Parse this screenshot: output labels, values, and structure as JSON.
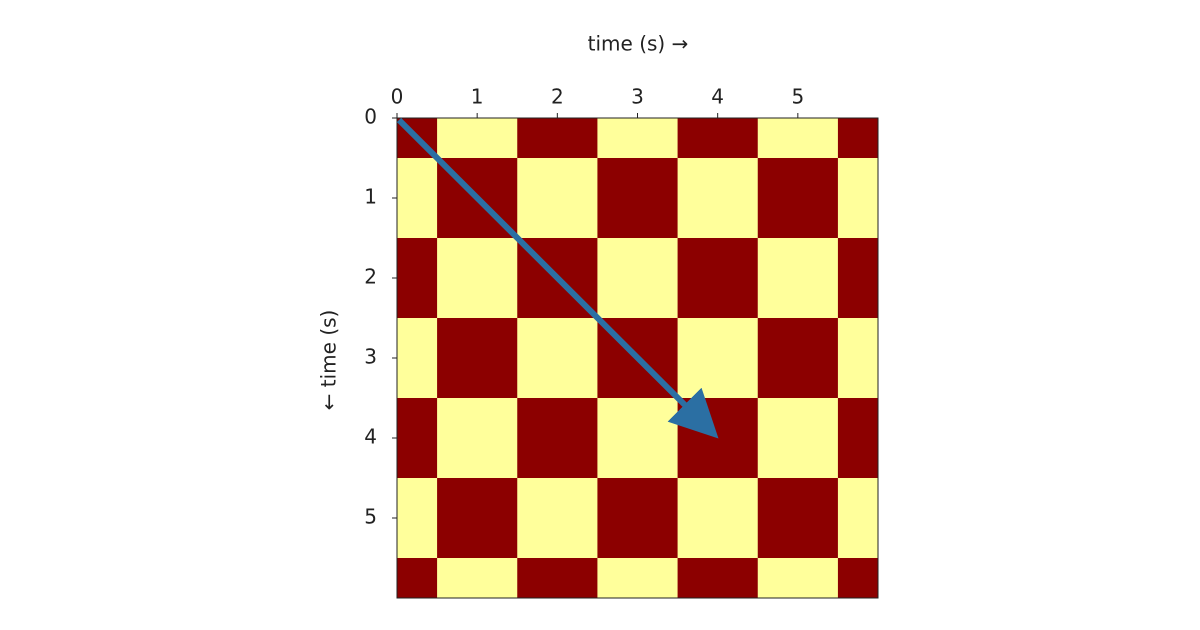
{
  "chart_data": {
    "type": "heatmap",
    "xlabel": "time (s) →",
    "ylabel": "← time (s)",
    "x_axis_position": "top",
    "colormap": "hot",
    "zlim": [
      0,
      1
    ],
    "xlim": [
      0,
      6
    ],
    "ylim": [
      6,
      0
    ],
    "xticks": [
      0,
      1,
      2,
      3,
      4,
      5
    ],
    "yticks": [
      0,
      1,
      2,
      3,
      4,
      5
    ],
    "x": [
      0.25,
      0.75,
      1.25,
      1.75,
      2.25,
      2.75,
      3.25,
      3.75,
      4.25,
      4.75,
      5.25,
      5.75
    ],
    "y": [
      0.25,
      0.75,
      1.25,
      1.75,
      2.25,
      2.75,
      3.25,
      3.75,
      4.25,
      4.75,
      5.25,
      5.75
    ],
    "z": [
      [
        0.2,
        0.9,
        0.9,
        0.2,
        0.2,
        0.9,
        0.9,
        0.2,
        0.2,
        0.9,
        0.9,
        0.2
      ],
      [
        0.9,
        0.2,
        0.2,
        0.9,
        0.9,
        0.2,
        0.2,
        0.9,
        0.9,
        0.2,
        0.2,
        0.9
      ],
      [
        0.9,
        0.2,
        0.2,
        0.9,
        0.9,
        0.2,
        0.2,
        0.9,
        0.9,
        0.2,
        0.2,
        0.9
      ],
      [
        0.2,
        0.9,
        0.9,
        0.2,
        0.2,
        0.9,
        0.9,
        0.2,
        0.2,
        0.9,
        0.9,
        0.2
      ],
      [
        0.2,
        0.9,
        0.9,
        0.2,
        0.2,
        0.9,
        0.9,
        0.2,
        0.2,
        0.9,
        0.9,
        0.2
      ],
      [
        0.9,
        0.2,
        0.2,
        0.9,
        0.9,
        0.2,
        0.2,
        0.9,
        0.9,
        0.2,
        0.2,
        0.9
      ],
      [
        0.9,
        0.2,
        0.2,
        0.9,
        0.9,
        0.2,
        0.2,
        0.9,
        0.9,
        0.2,
        0.2,
        0.9
      ],
      [
        0.2,
        0.9,
        0.9,
        0.2,
        0.2,
        0.9,
        0.9,
        0.2,
        0.2,
        0.9,
        0.9,
        0.2
      ],
      [
        0.2,
        0.9,
        0.9,
        0.2,
        0.2,
        0.9,
        0.9,
        0.2,
        0.2,
        0.9,
        0.9,
        0.2
      ],
      [
        0.9,
        0.2,
        0.2,
        0.9,
        0.9,
        0.2,
        0.2,
        0.9,
        0.9,
        0.2,
        0.2,
        0.9
      ],
      [
        0.9,
        0.2,
        0.2,
        0.9,
        0.9,
        0.2,
        0.2,
        0.9,
        0.9,
        0.2,
        0.2,
        0.9
      ],
      [
        0.2,
        0.9,
        0.9,
        0.2,
        0.2,
        0.9,
        0.9,
        0.2,
        0.2,
        0.9,
        0.9,
        0.2
      ]
    ]
  }
}
